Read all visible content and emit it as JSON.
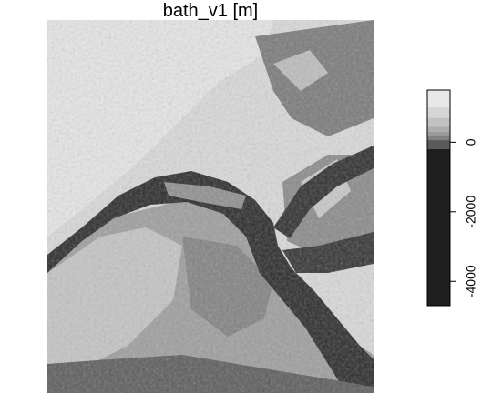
{
  "map": {
    "title": "bath_v1 [m]",
    "variable": "bath_v1",
    "unit": "m",
    "color_scheme": "grayscale",
    "legend": {
      "placement": "right",
      "range": [
        -4700,
        1500
      ],
      "ticks": [
        {
          "value": 0,
          "label": "0"
        },
        {
          "value": -2000,
          "label": "-2000"
        },
        {
          "value": -4000,
          "label": "-4000"
        }
      ],
      "bands": [
        {
          "from": 1000,
          "to": 1500,
          "color": "#e8e8e8"
        },
        {
          "from": 700,
          "to": 1000,
          "color": "#d6d6d6"
        },
        {
          "from": 450,
          "to": 700,
          "color": "#c2c2c2"
        },
        {
          "from": 300,
          "to": 450,
          "color": "#adadad"
        },
        {
          "from": 180,
          "to": 300,
          "color": "#9a9a9a"
        },
        {
          "from": 60,
          "to": 180,
          "color": "#808080"
        },
        {
          "from": -200,
          "to": 60,
          "color": "#5a5a5a"
        },
        {
          "from": -4700,
          "to": -200,
          "color": "#1e1e1e"
        }
      ]
    }
  }
}
